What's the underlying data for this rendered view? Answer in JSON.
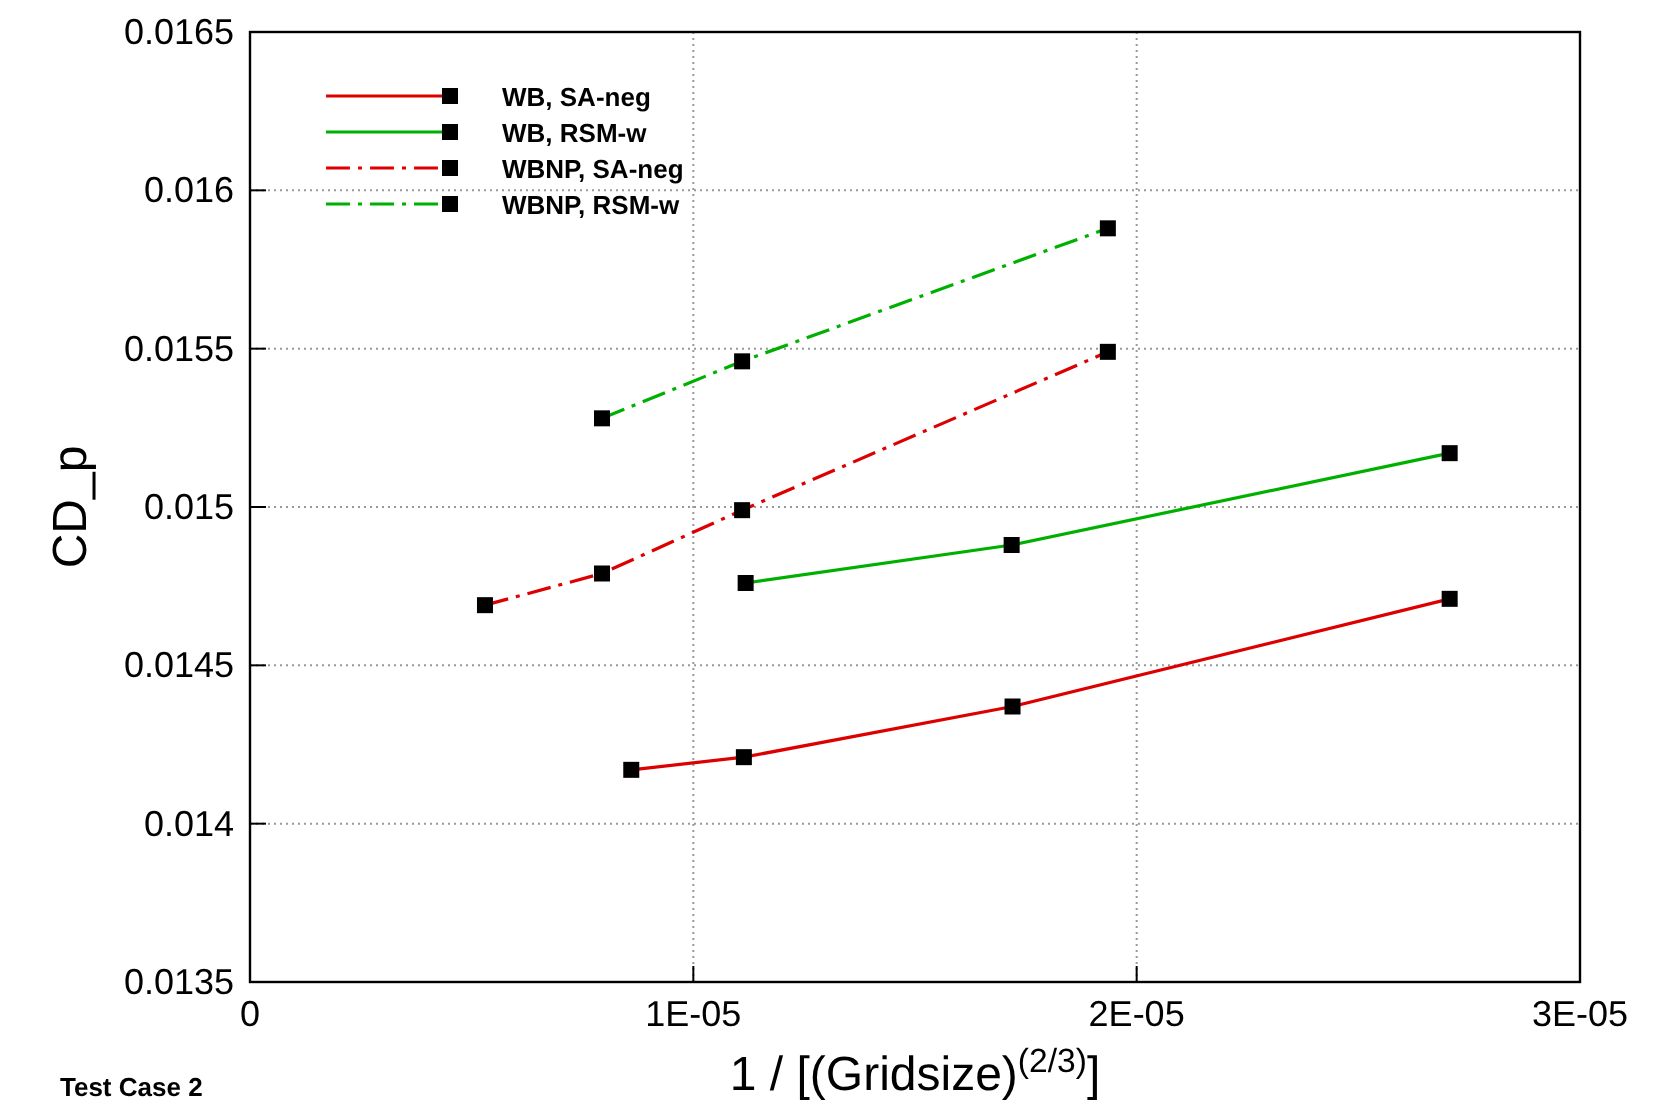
{
  "chart_data": {
    "type": "line",
    "xlabel": "1 / [(Gridsize)$^{(2/3)}$]",
    "ylabel": "CD_p",
    "annotations": [
      "Test Case 2"
    ],
    "xlim": [
      0,
      3e-05
    ],
    "xticks": [
      0,
      {
        "value": 1e-05,
        "label": "1E-05"
      },
      {
        "value": 2e-05,
        "label": "2E-05"
      },
      {
        "value": 3e-05,
        "label": "3E-05"
      }
    ],
    "ylim": [
      0.0135,
      0.0165
    ],
    "yticks": [
      0.0135,
      0.014,
      0.0145,
      0.015,
      0.0155,
      0.016,
      0.0165
    ],
    "grid": true,
    "legend": "top left",
    "marker": "square",
    "series": [
      {
        "name": "WB, SA-neg",
        "color": "#dd0000",
        "line_style": "solid",
        "x": [
          8.6e-06,
          1.114e-05,
          1.72e-05,
          2.706e-05
        ],
        "values": [
          0.01417,
          0.01421,
          0.01437,
          0.01471
        ]
      },
      {
        "name": "WB, RSM-w",
        "color": "#00b000",
        "line_style": "solid",
        "x": [
          1.118e-05,
          1.718e-05,
          2.706e-05
        ],
        "values": [
          0.01476,
          0.01488,
          0.01517
        ]
      },
      {
        "name": "WBNP, SA-neg",
        "color": "#dd0000",
        "line_style": "dashed",
        "x": [
          5.3e-06,
          7.94e-06,
          1.11e-05,
          1.935e-05
        ],
        "values": [
          0.01469,
          0.01479,
          0.01499,
          0.01549
        ]
      },
      {
        "name": "WBNP, RSM-w",
        "color": "#00b000",
        "line_style": "dashed",
        "x": [
          7.94e-06,
          1.11e-05,
          1.935e-05
        ],
        "values": [
          0.01528,
          0.01546,
          0.01588
        ]
      }
    ]
  }
}
